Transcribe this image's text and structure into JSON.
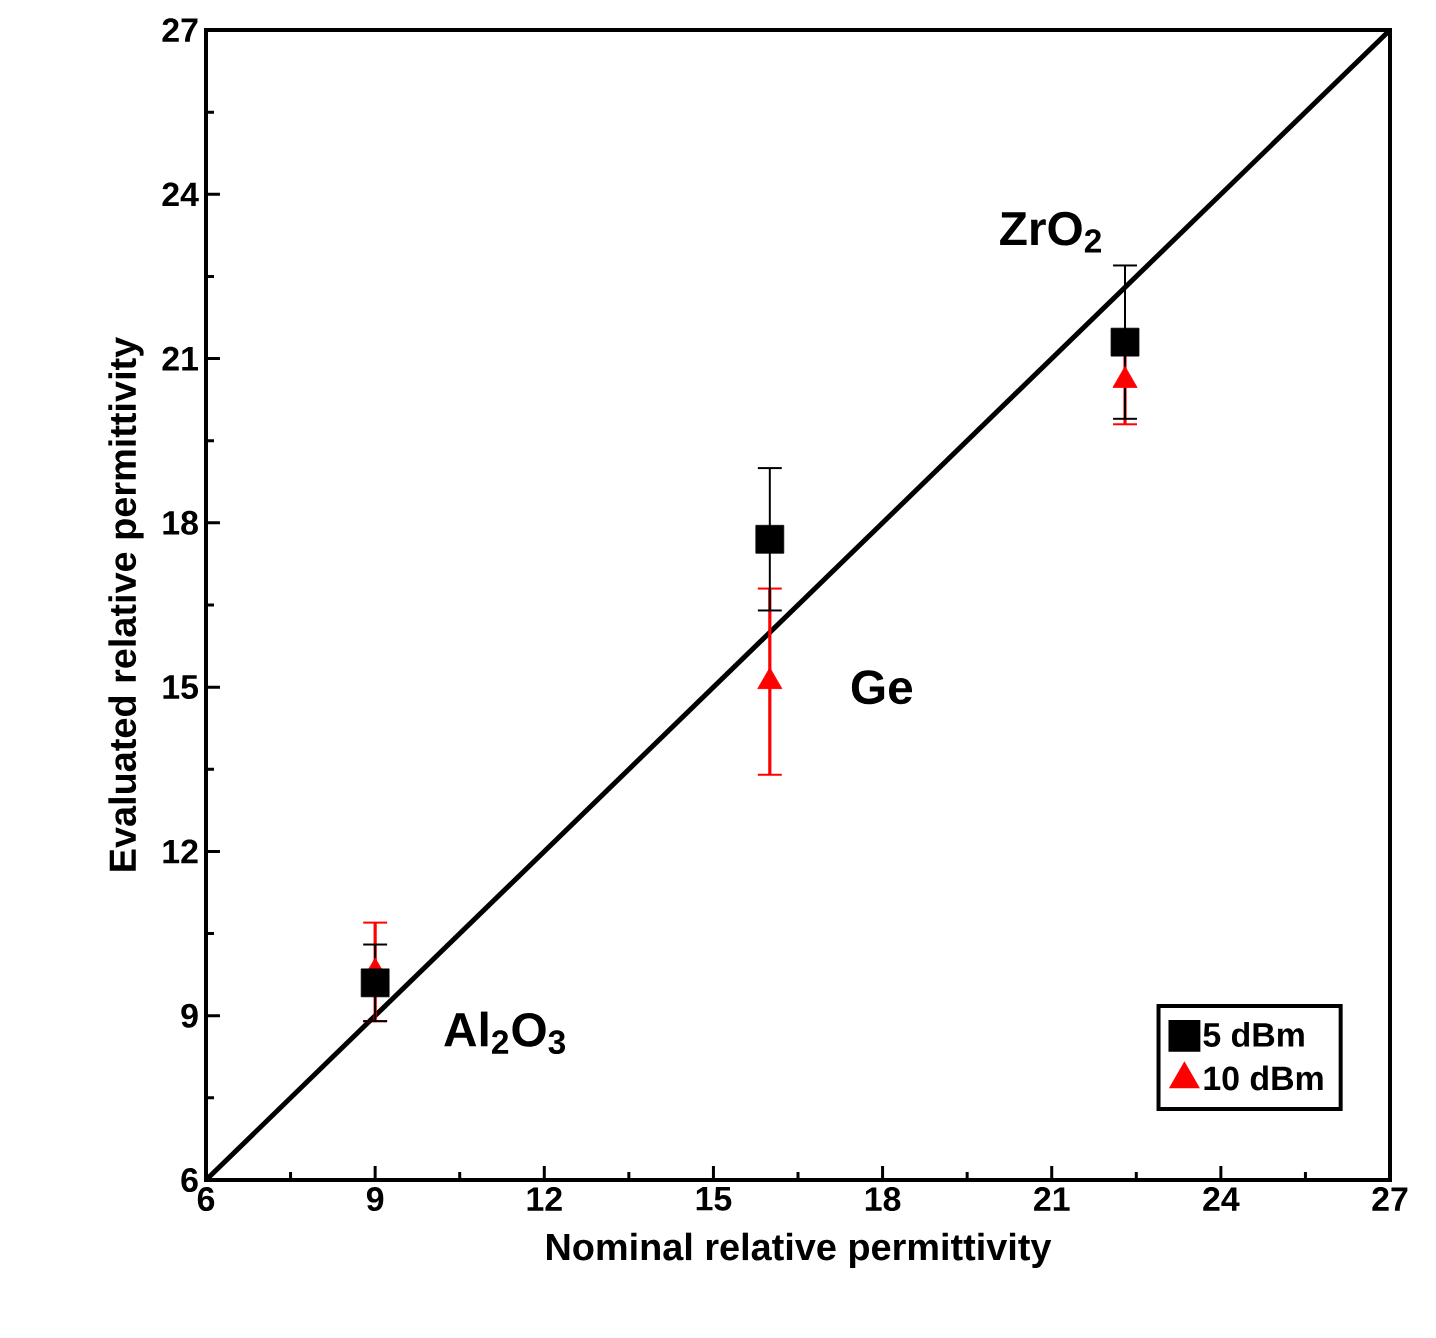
{
  "chart_data": {
    "type": "scatter",
    "xlabel": "Nominal relative permittivity",
    "ylabel": "Evaluated relative permittivity",
    "xlim": [
      6,
      27
    ],
    "ylim": [
      6,
      27
    ],
    "xticks": [
      6,
      9,
      12,
      15,
      18,
      21,
      24,
      27
    ],
    "yticks": [
      6,
      9,
      12,
      15,
      18,
      21,
      24,
      27
    ],
    "legend": "bottom right",
    "grid": false,
    "series": [
      {
        "name": "5 dBm",
        "color": "#000000",
        "marker": "square",
        "x": [
          9,
          16,
          22.3
        ],
        "values": [
          9.6,
          17.7,
          21.3
        ],
        "errors": [
          0.7,
          1.3,
          1.4
        ]
      },
      {
        "name": "10 dBm",
        "color": "#ff0000",
        "marker": "triangle",
        "x": [
          9,
          16,
          22.3
        ],
        "values": [
          9.8,
          15.1,
          20.6
        ],
        "errors": [
          0.9,
          1.7,
          0.8
        ]
      },
      {
        "type": "line",
        "color": "#000000",
        "line_style": "solid",
        "x": [
          6,
          27
        ],
        "values": [
          6,
          27
        ]
      }
    ],
    "annotations": [
      "Al$_{2}$O$_{3}$",
      "Ge",
      "ZrO$_{2}$"
    ]
  }
}
